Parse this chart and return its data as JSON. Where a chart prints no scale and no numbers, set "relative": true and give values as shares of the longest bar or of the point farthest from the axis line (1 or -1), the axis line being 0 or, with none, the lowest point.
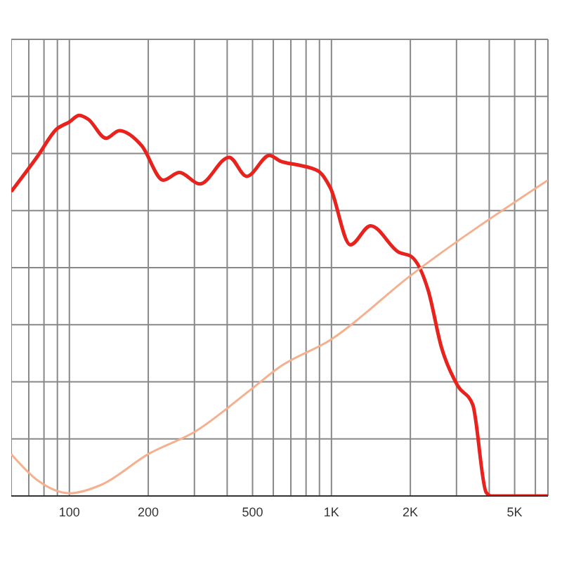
{
  "chart_data": {
    "type": "line",
    "relative": true,
    "log": "x",
    "grid": true,
    "legend": false,
    "marker": "none",
    "line_style": "solid",
    "xlim": [
      60,
      6700
    ],
    "xticks": [
      {
        "value": 60,
        "label": null
      },
      {
        "value": 70,
        "label": null
      },
      {
        "value": 80,
        "label": null
      },
      {
        "value": 90,
        "label": null
      },
      100,
      200,
      {
        "value": 300,
        "label": null
      },
      {
        "value": 400,
        "label": null
      },
      500,
      {
        "value": 600,
        "label": null
      },
      {
        "value": 700,
        "label": null
      },
      {
        "value": 800,
        "label": null
      },
      {
        "value": 900,
        "label": null
      },
      {
        "value": 1000,
        "label": "1K"
      },
      {
        "value": 2000,
        "label": "2K"
      },
      {
        "value": 3000,
        "label": null
      },
      {
        "value": 4000,
        "label": null
      },
      {
        "value": 5000,
        "label": "5K"
      },
      {
        "value": 6000,
        "label": null
      }
    ],
    "series": [
      {
        "color": "#e8231e",
        "x": [
          60,
          76,
          89,
          100,
          109,
          118,
          138,
          155,
          189,
          228,
          263,
          314,
          407,
          475,
          580,
          638,
          745,
          890,
          990,
          1180,
          1410,
          1810,
          2010,
          2340,
          2630,
          3030,
          3460,
          3890,
          4070,
          6700
        ],
        "values": [
          0.8,
          0.895,
          0.963,
          0.983,
          1,
          0.99,
          0.94,
          0.96,
          0.92,
          0.83,
          0.85,
          0.82,
          0.89,
          0.84,
          0.895,
          0.88,
          0.87,
          0.854,
          0.81,
          0.66,
          0.71,
          0.64,
          0.63,
          0.54,
          0.39,
          0.29,
          0.24,
          0.01,
          0,
          0
        ]
      },
      {
        "color": "#f4b08f",
        "x": [
          60,
          76,
          100,
          133,
          200,
          303,
          493,
          638,
          990,
          2010,
          6700
        ],
        "values": [
          0.11,
          0.04,
          0.007,
          0.03,
          0.11,
          0.17,
          0.28,
          0.34,
          0.41,
          0.58,
          0.83
        ]
      }
    ]
  }
}
